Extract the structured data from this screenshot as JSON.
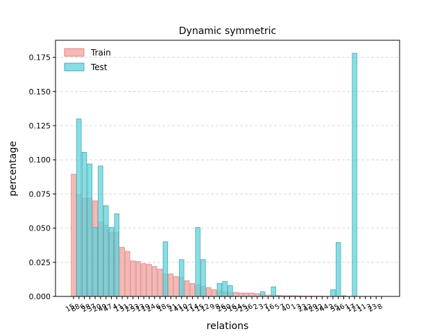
{
  "chart_data": {
    "type": "bar",
    "title": "Dynamic symmetric",
    "xlabel": "relations",
    "ylabel": "percentage",
    "ylim": [
      0,
      0.1875
    ],
    "yticks": [
      0.0,
      0.025,
      0.05,
      0.075,
      0.1,
      0.125,
      0.15,
      0.175
    ],
    "ytick_labels": [
      "0.000",
      "0.025",
      "0.050",
      "0.075",
      "0.100",
      "0.125",
      "0.150",
      "0.175"
    ],
    "grid": "y-dashed",
    "legend_position": "top-left",
    "categories": [
      "15",
      "88",
      "6",
      "28",
      "37",
      "20",
      "49",
      "47",
      "4",
      "11",
      "31",
      "22",
      "33",
      "13",
      "19",
      "24",
      "6",
      "18",
      "5",
      "21",
      "41",
      "10",
      "17",
      "14",
      "15",
      "12",
      "9",
      "8",
      "26",
      "30",
      "16",
      "34",
      "25",
      "36",
      "2",
      "3",
      "7",
      "16",
      "5",
      "7",
      "40",
      "1",
      "3",
      "23",
      "42",
      "29",
      "32",
      "44",
      "2",
      "35",
      "46",
      "1",
      "17",
      "21",
      "11",
      "3",
      "23",
      "8"
    ],
    "series": [
      {
        "name": "Train",
        "color": "#f4a09c",
        "values": [
          0.0895,
          0.0745,
          0.072,
          0.072,
          0.07,
          0.0545,
          0.052,
          0.047,
          0.047,
          0.036,
          0.033,
          0.026,
          0.0255,
          0.024,
          0.0235,
          0.022,
          0.02,
          0.0165,
          0.0165,
          0.0145,
          0.014,
          0.0115,
          0.0095,
          0.0085,
          0.0075,
          0.0065,
          0.005,
          0.004,
          0.0035,
          0.003,
          0.003,
          0.0025,
          0.0025,
          0.0025,
          0.002,
          0.0015,
          0.001,
          0.001,
          0.0008,
          0.0005,
          0.0005,
          0.0005,
          0.0004,
          0.0003,
          0.0003,
          0.0002,
          0.0002,
          0.0001,
          0.0001,
          0.0001,
          0.0001,
          0.0,
          0.0,
          0.0,
          0.0,
          0.0,
          0.0,
          0.0
        ]
      },
      {
        "name": "Test",
        "color": "#5fd3db",
        "values": [
          0.0,
          0.13,
          0.1055,
          0.097,
          0.0505,
          0.0955,
          0.0665,
          0.0505,
          0.0605,
          0.0,
          0.0,
          0.0,
          0.0,
          0.0,
          0.0,
          0.0,
          0.0,
          0.04,
          0.0,
          0.0,
          0.027,
          0.0,
          0.0,
          0.0505,
          0.027,
          0.0,
          0.0,
          0.0095,
          0.011,
          0.008,
          0.0,
          0.0,
          0.0,
          0.0,
          0.0,
          0.0035,
          0.0,
          0.007,
          0.0,
          0.0,
          0.0,
          0.0,
          0.0,
          0.0,
          0.0,
          0.0,
          0.0,
          0.0,
          0.005,
          0.0395,
          0.0005,
          0.0,
          0.178,
          0.0,
          0.0,
          0.0,
          0.0,
          0.0
        ]
      }
    ]
  }
}
